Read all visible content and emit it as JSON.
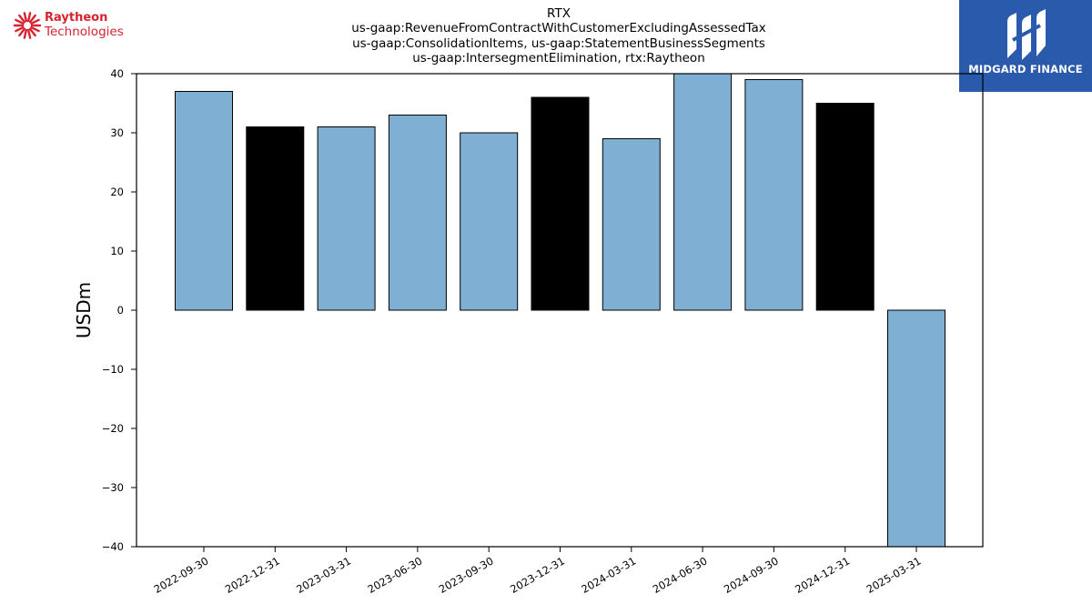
{
  "header": {
    "left_logo": {
      "line1": "Raytheon",
      "line2": "Technologies",
      "color": "#d6232f",
      "icon": "sunburst-logo-icon"
    },
    "right_logo": {
      "text": "MIDGARD FINANCE",
      "background": "#2a5aab",
      "icon": "midgard-monogram-icon"
    }
  },
  "chart_data": {
    "type": "bar",
    "title_lines": [
      "RTX",
      "us-gaap:RevenueFromContractWithCustomerExcludingAssessedTax",
      "us-gaap:ConsolidationItems, us-gaap:StatementBusinessSegments",
      "us-gaap:IntersegmentElimination, rtx:Raytheon"
    ],
    "ylabel": "USDm",
    "xlabel": "",
    "ylim": [
      -40,
      40
    ],
    "yticks": [
      40,
      30,
      20,
      10,
      0,
      -10,
      -20,
      -30,
      -40
    ],
    "categories": [
      "2022-09-30",
      "2022-12-31",
      "2023-03-31",
      "2023-06-30",
      "2023-09-30",
      "2023-12-31",
      "2024-03-31",
      "2024-06-30",
      "2024-09-30",
      "2024-12-31",
      "2025-03-31"
    ],
    "values": [
      37,
      31,
      31,
      33,
      30,
      36,
      29,
      40,
      39,
      35,
      -40
    ],
    "bar_colors": [
      "#7fb0d3",
      "#000000",
      "#7fb0d3",
      "#7fb0d3",
      "#7fb0d3",
      "#000000",
      "#7fb0d3",
      "#7fb0d3",
      "#7fb0d3",
      "#000000",
      "#7fb0d3"
    ],
    "grid": false,
    "legend": "none"
  }
}
